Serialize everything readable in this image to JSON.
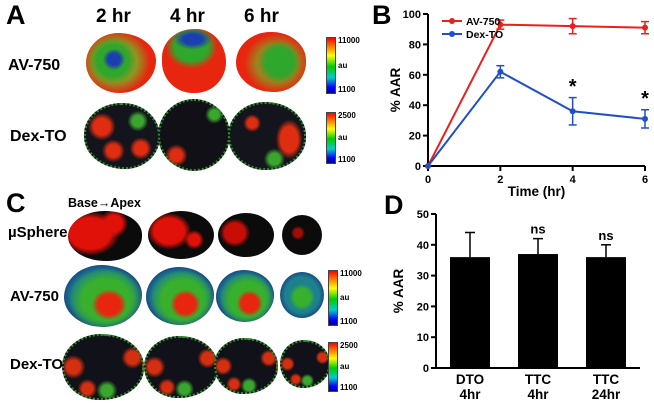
{
  "panels": {
    "A": {
      "label": "A",
      "col_headers": [
        "2 hr",
        "4 hr",
        "6 hr"
      ],
      "rows": [
        {
          "label": "AV-750",
          "colorbar": {
            "top": "11000",
            "mid": "au",
            "bottom": "1100"
          }
        },
        {
          "label": "Dex-TO",
          "colorbar": {
            "top": "2500",
            "mid": "au",
            "bottom": "1100"
          }
        }
      ]
    },
    "B": {
      "label": "B"
    },
    "C": {
      "label": "C",
      "header": "Base→Apex",
      "rows": [
        {
          "label": "µSphere"
        },
        {
          "label": "AV-750",
          "colorbar": {
            "top": "11000",
            "mid": "au",
            "bottom": "1100"
          }
        },
        {
          "label": "Dex-TO",
          "colorbar": {
            "top": "2500",
            "mid": "au",
            "bottom": "1100"
          }
        }
      ]
    },
    "D": {
      "label": "D"
    }
  },
  "chart_data": [
    {
      "type": "line",
      "panel": "B",
      "title": "",
      "xlabel": "Time (hr)",
      "ylabel": "% AAR",
      "xlim": [
        0,
        6
      ],
      "ylim": [
        0,
        100
      ],
      "xticks": [
        0,
        2,
        4,
        6
      ],
      "yticks": [
        0,
        20,
        40,
        60,
        80,
        100
      ],
      "x": [
        0,
        2,
        4,
        6
      ],
      "series": [
        {
          "name": "AV-750",
          "color": "#e8211d",
          "values": [
            0,
            93,
            92,
            91
          ],
          "errors": [
            0,
            3,
            5,
            4
          ]
        },
        {
          "name": "Dex-TO",
          "color": "#2050c8",
          "values": [
            0,
            62,
            36,
            31
          ],
          "errors": [
            0,
            4,
            9,
            6
          ]
        }
      ],
      "annotations": [
        {
          "text": "*",
          "x": 4,
          "y": 48,
          "color": "#2050c8"
        },
        {
          "text": "*",
          "x": 6,
          "y": 40,
          "color": "#2050c8"
        }
      ],
      "legend_position": "top-left",
      "grid": false
    },
    {
      "type": "bar",
      "panel": "D",
      "title": "",
      "xlabel": "",
      "ylabel": "% AAR",
      "ylim": [
        0,
        50
      ],
      "yticks": [
        0,
        10,
        20,
        30,
        40,
        50
      ],
      "categories": [
        "DTO\n4hr",
        "TTC\n4hr",
        "TTC\n24hr"
      ],
      "values": [
        36,
        37,
        36
      ],
      "errors": [
        8,
        5,
        4
      ],
      "annotations": [
        "",
        "ns",
        "ns"
      ],
      "bar_color": "#000000",
      "grid": false
    }
  ]
}
